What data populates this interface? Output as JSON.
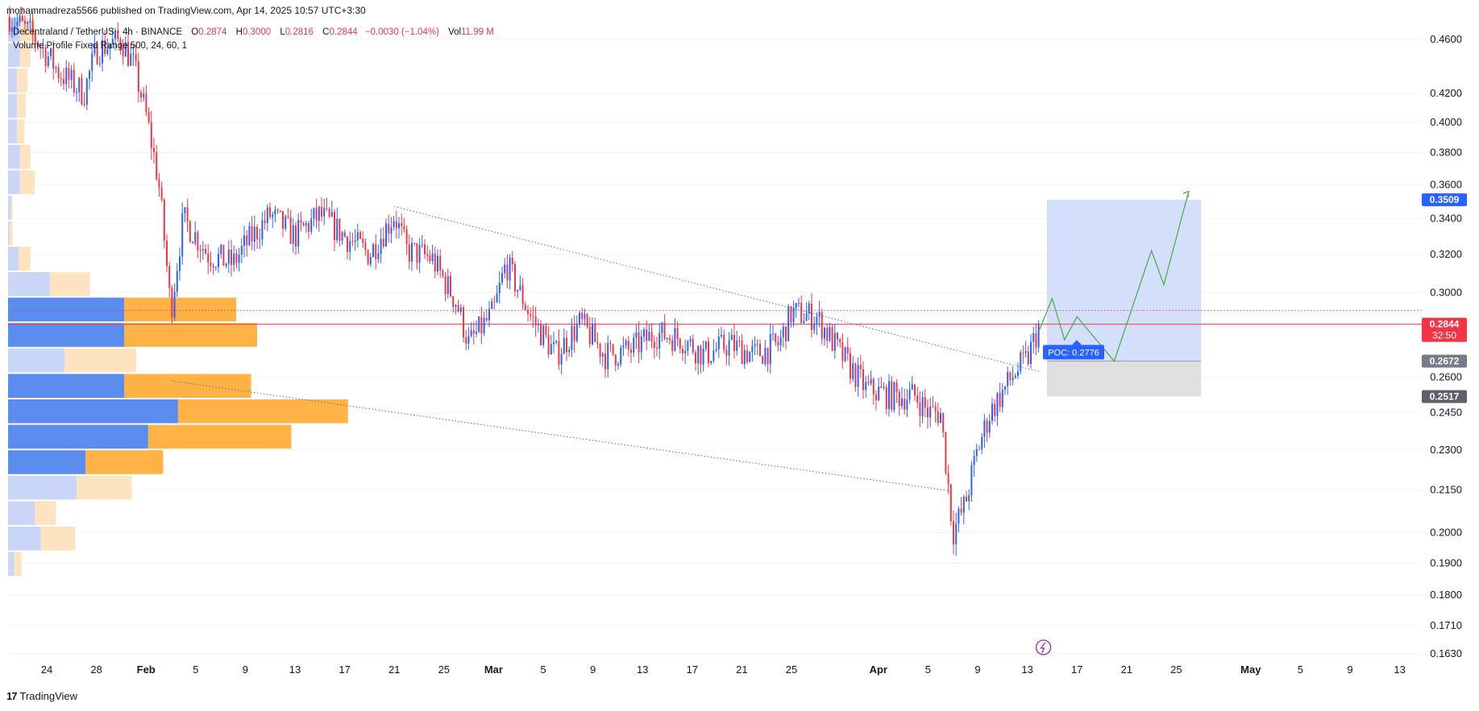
{
  "publisher": "mohammadreza5566 published on TradingView.com, Apr 14, 2025 10:57 UTC+3:30",
  "legend": {
    "symbol": "Decentraland / TetherUS · 4h · BINANCE",
    "o_label": "O",
    "o_value": "0.2874",
    "h_label": "H",
    "h_value": "0.3000",
    "l_label": "L",
    "l_value": "0.2816",
    "c_label": "C",
    "c_value": "0.2844",
    "change": "−0.0030 (−1.04%)",
    "vol_label": "Vol",
    "vol_value": "11.99 M",
    "indicator": "Volume Profile Fixed Range 500, 24, 60, 1"
  },
  "footer": {
    "logo": "17",
    "brand": "TradingView"
  },
  "colors": {
    "up": "#2962ff",
    "down": "#f23645",
    "vp_up": "#5b8def",
    "vp_down": "#ffb347",
    "position_target": "#cfdcfb",
    "position_stop": "#dddddd",
    "projection": "#4caf50"
  },
  "chart_data": {
    "type": "line",
    "symbol": "Decentraland / TetherUS",
    "timeframe": "4h",
    "exchange": "BINANCE",
    "y_axis": {
      "ticks": [
        "0.4600",
        "0.4200",
        "0.4000",
        "0.3800",
        "0.3600",
        "0.3400",
        "0.3200",
        "0.3000",
        "0.2600",
        "0.2450",
        "0.2300",
        "0.2150",
        "0.2000",
        "0.1900",
        "0.1800",
        "0.1710",
        "0.1630"
      ],
      "scale": "log",
      "ylim": [
        0.16,
        0.475
      ]
    },
    "x_axis": {
      "ticks": [
        "24",
        "28",
        "Feb",
        "5",
        "9",
        "13",
        "17",
        "21",
        "25",
        "Mar",
        "5",
        "9",
        "13",
        "17",
        "21",
        "25",
        "Apr",
        "5",
        "9",
        "13",
        "17",
        "21",
        "25",
        "May",
        "5",
        "9",
        "13"
      ],
      "bold": [
        "Feb",
        "Mar",
        "Apr",
        "May"
      ],
      "start_date": "2025-01-24"
    },
    "price_path": [
      [
        "2025-01-21",
        0.478
      ],
      [
        "2025-01-23",
        0.462
      ],
      [
        "2025-01-25",
        0.435
      ],
      [
        "2025-01-27",
        0.42
      ],
      [
        "2025-01-28",
        0.452
      ],
      [
        "2025-01-30",
        0.46
      ],
      [
        "2025-01-31",
        0.44
      ],
      [
        "2025-02-01",
        0.405
      ],
      [
        "2025-02-02",
        0.362
      ],
      [
        "2025-02-03",
        0.29
      ],
      [
        "2025-02-04",
        0.34
      ],
      [
        "2025-02-06",
        0.32
      ],
      [
        "2025-02-08",
        0.315
      ],
      [
        "2025-02-09",
        0.325
      ],
      [
        "2025-02-11",
        0.342
      ],
      [
        "2025-02-13",
        0.33
      ],
      [
        "2025-02-15",
        0.342
      ],
      [
        "2025-02-17",
        0.33
      ],
      [
        "2025-02-19",
        0.32
      ],
      [
        "2025-02-21",
        0.342
      ],
      [
        "2025-02-22",
        0.322
      ],
      [
        "2025-02-24",
        0.318
      ],
      [
        "2025-02-26",
        0.295
      ],
      [
        "2025-02-27",
        0.275
      ],
      [
        "2025-03-01",
        0.29
      ],
      [
        "2025-03-02",
        0.315
      ],
      [
        "2025-03-04",
        0.288
      ],
      [
        "2025-03-06",
        0.27
      ],
      [
        "2025-03-08",
        0.285
      ],
      [
        "2025-03-10",
        0.27
      ],
      [
        "2025-03-12",
        0.272
      ],
      [
        "2025-03-14",
        0.28
      ],
      [
        "2025-03-16",
        0.278
      ],
      [
        "2025-03-18",
        0.27
      ],
      [
        "2025-03-20",
        0.275
      ],
      [
        "2025-03-22",
        0.27
      ],
      [
        "2025-03-24",
        0.275
      ],
      [
        "2025-03-25",
        0.29
      ],
      [
        "2025-03-27",
        0.288
      ],
      [
        "2025-03-29",
        0.27
      ],
      [
        "2025-03-31",
        0.255
      ],
      [
        "2025-04-02",
        0.252
      ],
      [
        "2025-04-04",
        0.252
      ],
      [
        "2025-04-05",
        0.245
      ],
      [
        "2025-04-06",
        0.245
      ],
      [
        "2025-04-07",
        0.2
      ],
      [
        "2025-04-08",
        0.21
      ],
      [
        "2025-04-09",
        0.23
      ],
      [
        "2025-04-10",
        0.245
      ],
      [
        "2025-04-12",
        0.262
      ],
      [
        "2025-04-13",
        0.268
      ],
      [
        "2025-04-14",
        0.2844
      ]
    ],
    "trendlines": [
      {
        "from": [
          "2025-02-21",
          0.347
        ],
        "to": [
          "2025-04-14",
          0.2625
        ]
      },
      {
        "from": [
          "2025-02-03",
          0.2585
        ],
        "to": [
          "2025-04-07",
          0.2145
        ]
      }
    ],
    "volume_profile": {
      "poc_label": "POC: 0.2776",
      "rows": [
        {
          "up": 8,
          "down": 10
        },
        {
          "up": 8,
          "down": 7
        },
        {
          "up": 6,
          "down": 7
        },
        {
          "up": 6,
          "down": 6
        },
        {
          "up": 6,
          "down": 5
        },
        {
          "up": 8,
          "down": 7
        },
        {
          "up": 8,
          "down": 10
        },
        {
          "up": 2,
          "down": 1
        },
        {
          "up": 1,
          "down": 2
        },
        {
          "up": 7,
          "down": 8
        },
        {
          "up": 28,
          "down": 27
        },
        {
          "up": 78,
          "down": 75
        },
        {
          "up": 78,
          "down": 89
        },
        {
          "up": 38,
          "down": 48
        },
        {
          "up": 78,
          "down": 85
        },
        {
          "up": 114,
          "down": 114
        },
        {
          "up": 94,
          "down": 96
        },
        {
          "up": 52,
          "down": 52
        },
        {
          "up": 46,
          "down": 37
        },
        {
          "up": 18,
          "down": 14
        },
        {
          "up": 22,
          "down": 23
        },
        {
          "up": 4,
          "down": 5
        }
      ]
    },
    "position": {
      "entry": 0.2672,
      "target": 0.3509,
      "stop": 0.2517,
      "from": "2025-04-14",
      "to": "2025-04-27"
    },
    "projection_path": [
      [
        "2025-04-14",
        0.282
      ],
      [
        "2025-04-15",
        0.297
      ],
      [
        "2025-04-16",
        0.277
      ],
      [
        "2025-04-17",
        0.288
      ],
      [
        "2025-04-20",
        0.2672
      ],
      [
        "2025-04-23",
        0.322
      ],
      [
        "2025-04-24",
        0.304
      ],
      [
        "2025-04-26",
        0.356
      ]
    ],
    "price_labels": [
      {
        "value": "0.3509",
        "color": "#2962ff",
        "kind": "target"
      },
      {
        "value": "0.2844",
        "sub": "32:50",
        "color": "#f23645",
        "kind": "last"
      },
      {
        "value": "0.2672",
        "color": "#787b86",
        "kind": "entry"
      },
      {
        "value": "0.2517",
        "color": "#5d606b",
        "kind": "stop"
      }
    ],
    "last_price": 0.2844
  }
}
